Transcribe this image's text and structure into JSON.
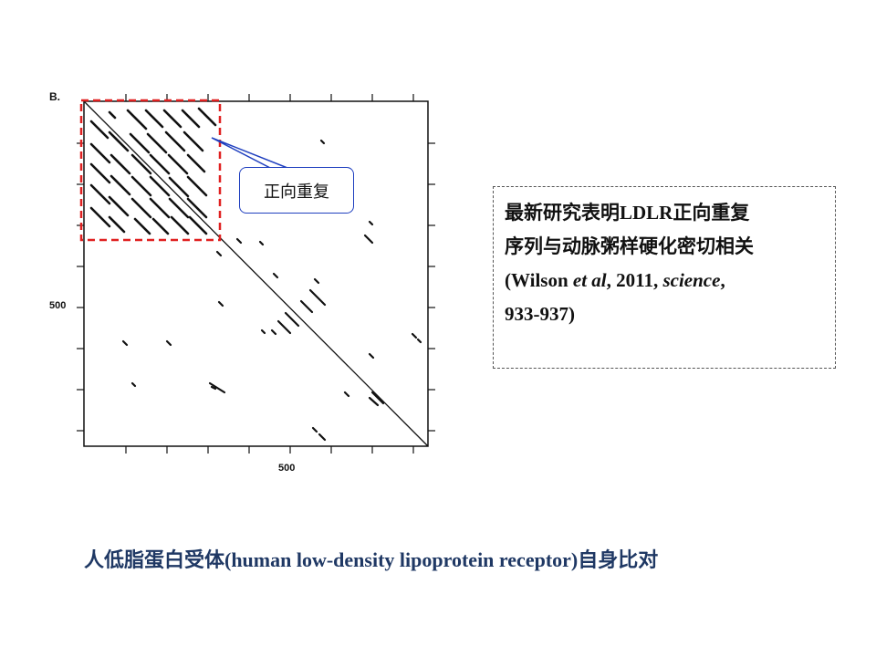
{
  "figure": {
    "panel_label": "B.",
    "y_tick_label": "500",
    "x_tick_label": "500",
    "callout_label": "正向重复",
    "highlight_color": "#e02020",
    "callout_color": "#1f3fbf"
  },
  "info_box": {
    "line1": "最新研究表明LDLR正向重复",
    "line2": "序列与动脉粥样硬化密切相关",
    "line3_prefix": "(Wilson ",
    "line3_italic1": "et al",
    "line3_mid": ", 2011, ",
    "line3_italic2": "science",
    "line3_suffix": ",",
    "line4": "933-937)"
  },
  "caption": {
    "text": "人低脂蛋白受体(human low-density lipoprotein receptor)自身比对",
    "color": "#1f3864"
  }
}
